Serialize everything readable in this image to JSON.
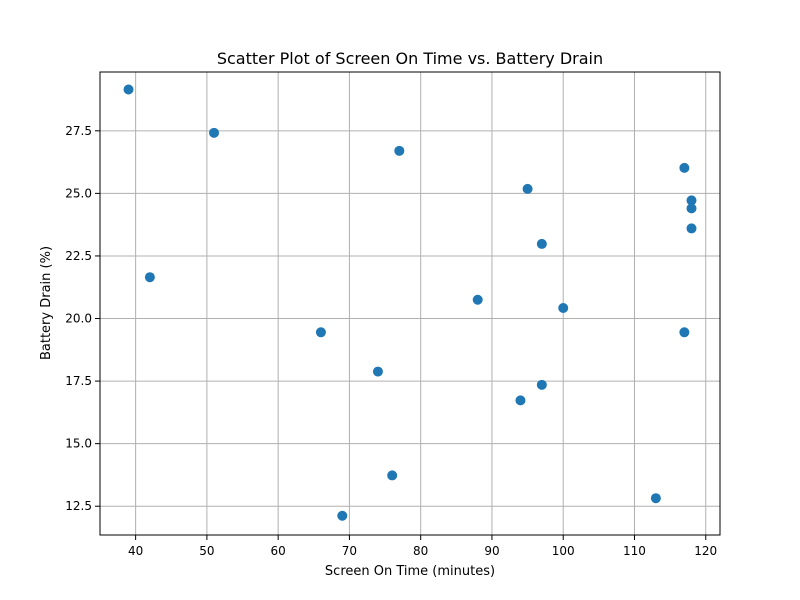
{
  "chart_data": {
    "type": "scatter",
    "title": "Scatter Plot of Screen On Time vs. Battery Drain",
    "xlabel": "Screen On Time (minutes)",
    "ylabel": "Battery Drain (%)",
    "xlim": [
      35,
      122
    ],
    "ylim": [
      11.35,
      29.85
    ],
    "xticks": [
      40,
      50,
      60,
      70,
      80,
      90,
      100,
      110,
      120
    ],
    "yticks": [
      12.5,
      15.0,
      17.5,
      20.0,
      22.5,
      25.0,
      27.5
    ],
    "grid": true,
    "marker_color": "#1f77b4",
    "points": [
      {
        "x": 39,
        "y": 29.15
      },
      {
        "x": 51,
        "y": 27.42
      },
      {
        "x": 77,
        "y": 26.7
      },
      {
        "x": 117,
        "y": 26.02
      },
      {
        "x": 95,
        "y": 25.18
      },
      {
        "x": 118,
        "y": 24.72
      },
      {
        "x": 118,
        "y": 24.4
      },
      {
        "x": 118,
        "y": 23.6
      },
      {
        "x": 97,
        "y": 22.98
      },
      {
        "x": 42,
        "y": 21.65
      },
      {
        "x": 88,
        "y": 20.75
      },
      {
        "x": 100,
        "y": 20.42
      },
      {
        "x": 66,
        "y": 19.45
      },
      {
        "x": 117,
        "y": 19.45
      },
      {
        "x": 74,
        "y": 17.88
      },
      {
        "x": 97,
        "y": 17.35
      },
      {
        "x": 94,
        "y": 16.73
      },
      {
        "x": 76,
        "y": 13.73
      },
      {
        "x": 113,
        "y": 12.82
      },
      {
        "x": 69,
        "y": 12.12
      }
    ]
  }
}
